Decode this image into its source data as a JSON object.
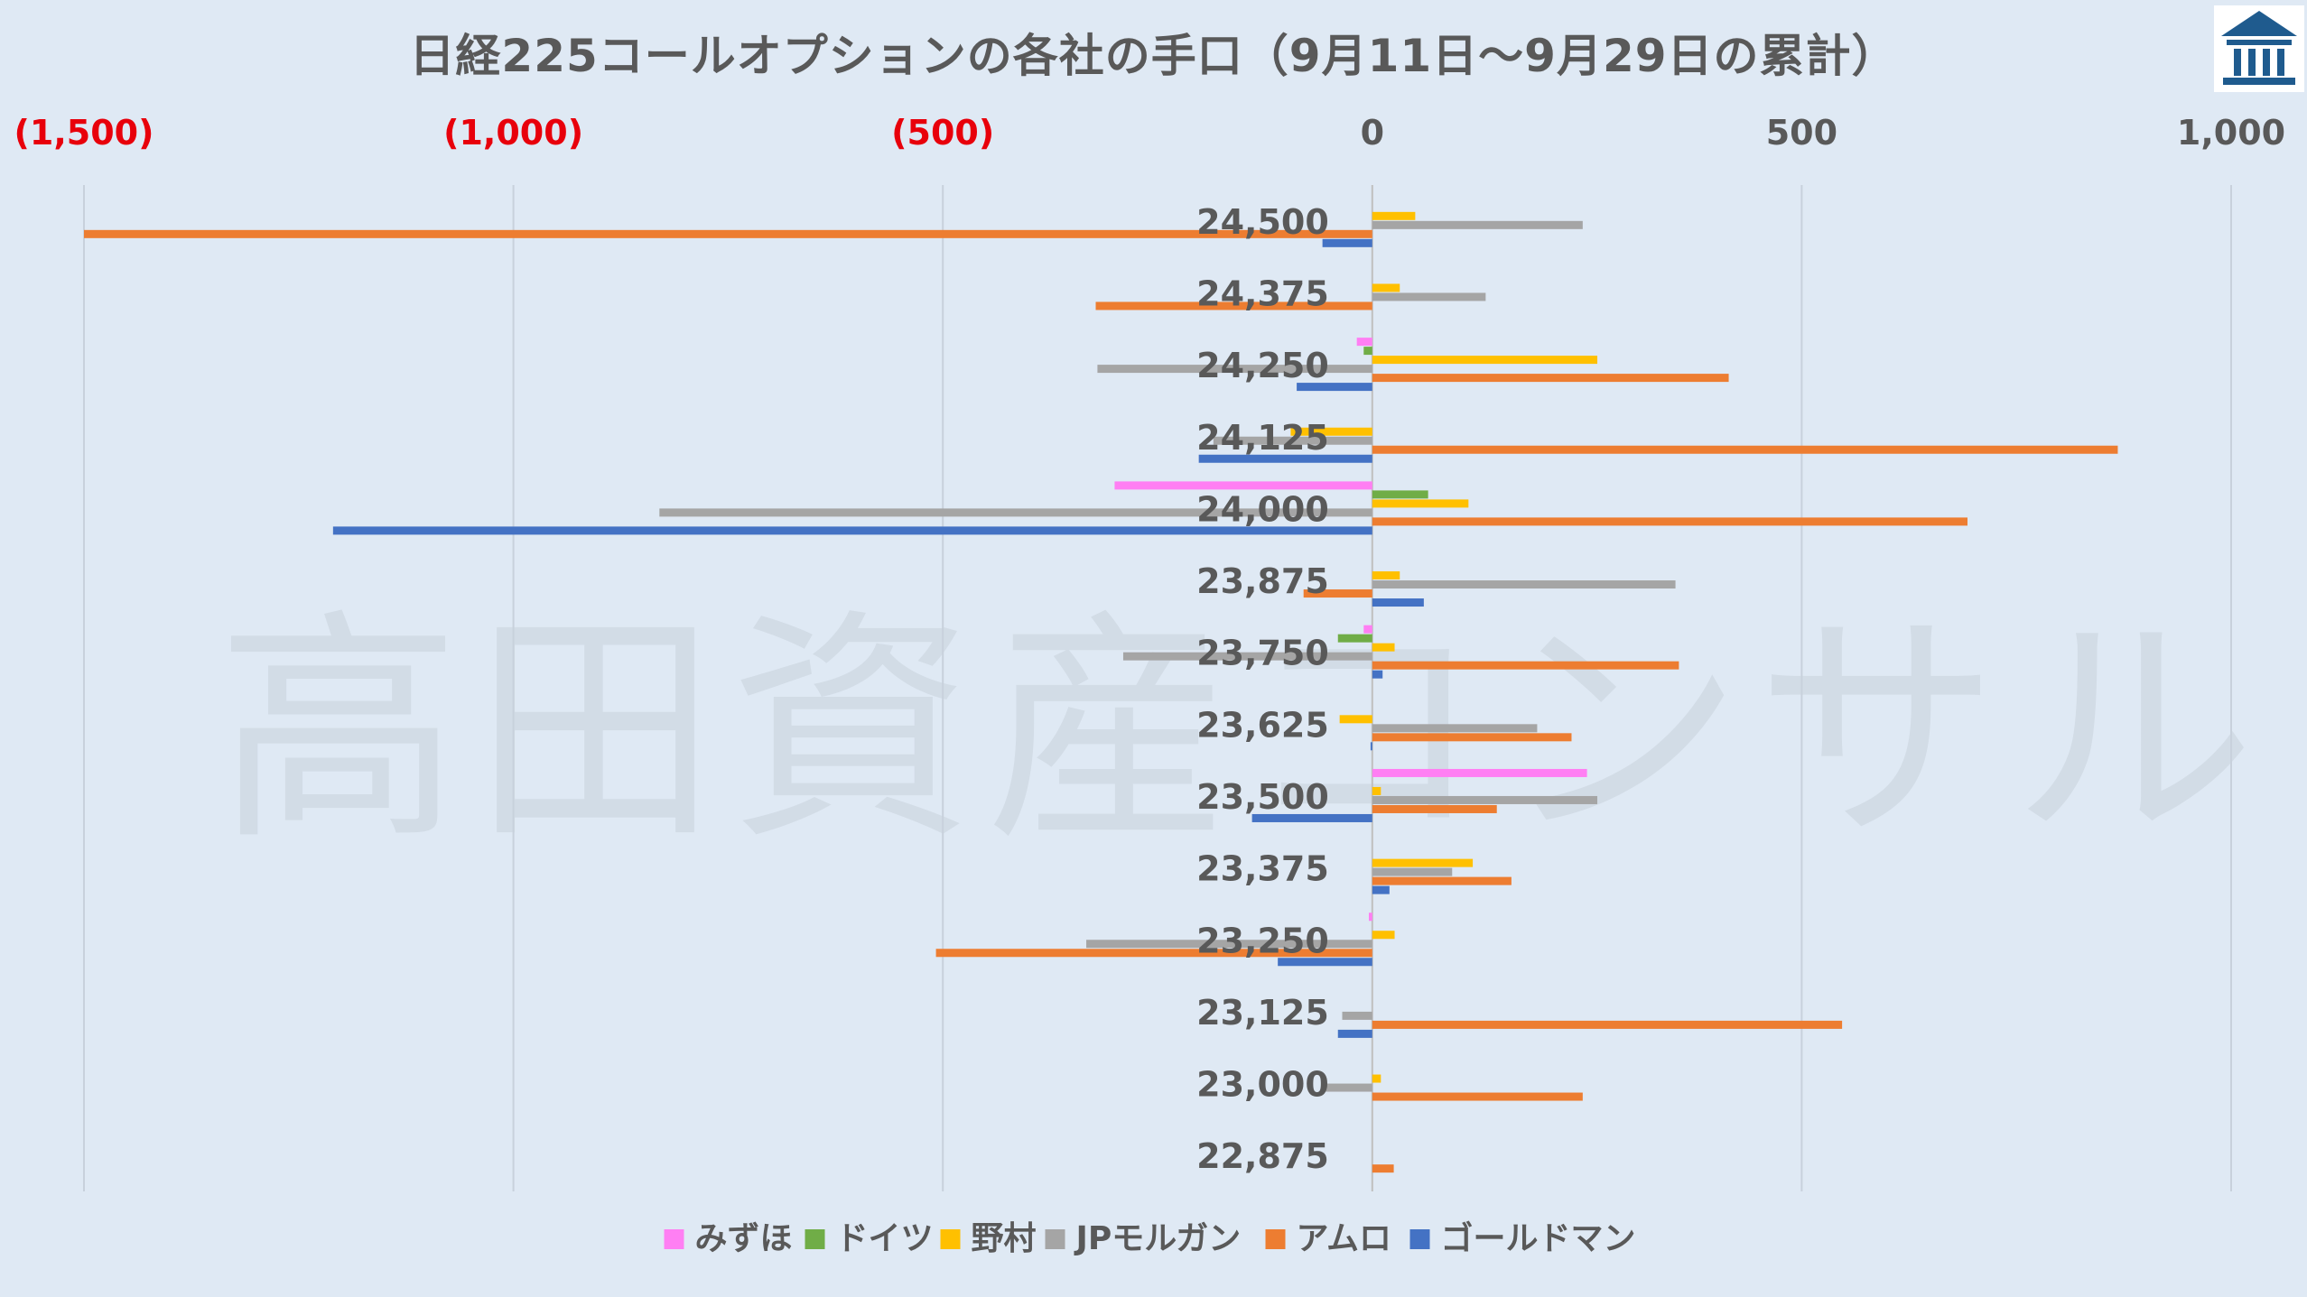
{
  "title": "日経225コールオプションの各社の手口（9月11日～9月29日の累計）",
  "watermark": "高田資産コンサル",
  "logo_icon": "building-icon",
  "colors": {
    "background": "#dfe9f4",
    "grid": "#c8d1dc",
    "negative_tick": "#e8000b",
    "positive_tick": "#595959",
    "logo": "#1f5b8e"
  },
  "chart_data": {
    "type": "bar",
    "orientation": "horizontal",
    "title": "日経225コールオプションの各社の手口（9月11日～9月29日の累計）",
    "xlim": [
      -1500,
      1000
    ],
    "xticks": [
      -1500,
      -1000,
      -500,
      0,
      500,
      1000
    ],
    "xtick_labels": [
      "(1,500)",
      "(1,000)",
      "(500)",
      "0",
      "500",
      "1,000"
    ],
    "axis_position": "top",
    "grid": true,
    "legend_position": "bottom",
    "categories": [
      "24,500",
      "24,375",
      "24,250",
      "24,125",
      "24,000",
      "23,875",
      "23,750",
      "23,625",
      "23,500",
      "23,375",
      "23,250",
      "23,125",
      "23,000",
      "22,875"
    ],
    "series": [
      {
        "name": "みずほ",
        "color": "#ff7ff3",
        "values": [
          0,
          0,
          -18,
          0,
          -300,
          0,
          -10,
          0,
          250,
          0,
          -4,
          0,
          0,
          0
        ]
      },
      {
        "name": "ドイツ",
        "color": "#70ad47",
        "values": [
          0,
          0,
          -10,
          0,
          65,
          0,
          -40,
          0,
          0,
          0,
          0,
          0,
          0,
          0
        ]
      },
      {
        "name": "野村",
        "color": "#ffc000",
        "values": [
          50,
          32,
          262,
          -95,
          112,
          32,
          26,
          -38,
          10,
          117,
          26,
          0,
          10,
          0
        ]
      },
      {
        "name": "JPモルガン",
        "color": "#a5a5a5",
        "values": [
          245,
          132,
          -320,
          -185,
          -830,
          353,
          -290,
          192,
          262,
          93,
          -333,
          -35,
          -55,
          0
        ]
      },
      {
        "name": "アムロ",
        "color": "#ed7d31",
        "values": [
          -1500,
          -322,
          415,
          868,
          693,
          -80,
          357,
          232,
          145,
          162,
          -508,
          547,
          245,
          25
        ]
      },
      {
        "name": "ゴールドマン",
        "color": "#4472c4",
        "values": [
          -58,
          0,
          -88,
          -202,
          -1210,
          60,
          12,
          -2,
          -140,
          20,
          -110,
          -40,
          0,
          0
        ]
      }
    ]
  }
}
